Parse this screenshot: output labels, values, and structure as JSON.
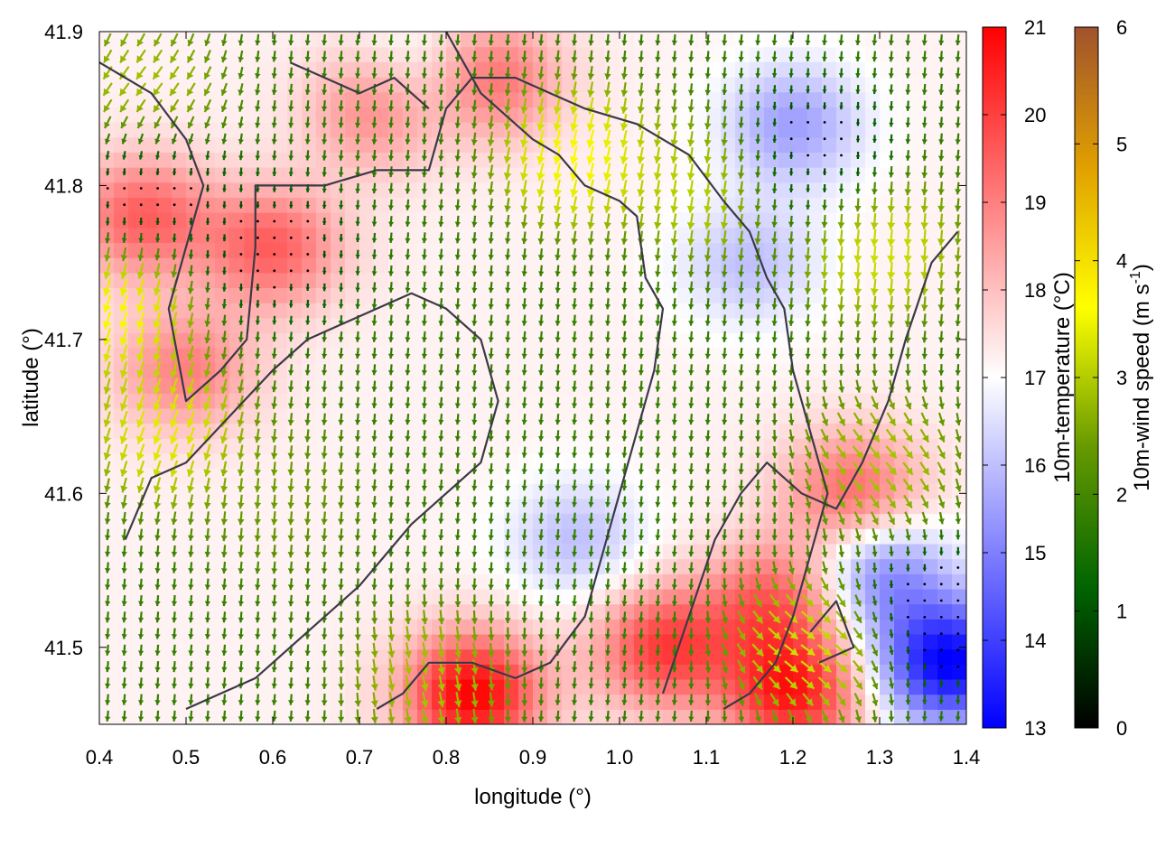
{
  "chart_data": {
    "type": "heatmap",
    "title": "",
    "xlabel": "longitude (°)",
    "ylabel": "latitude (°)",
    "xlim": [
      0.4,
      1.4
    ],
    "ylim": [
      41.45,
      41.9
    ],
    "xticks": [
      "0.4",
      "0.5",
      "0.6",
      "0.7",
      "0.8",
      "0.9",
      "1.0",
      "1.1",
      "1.2",
      "1.3",
      "1.4"
    ],
    "yticks": [
      "41.5",
      "41.6",
      "41.7",
      "41.8",
      "41.9"
    ],
    "xtick_values": [
      0.4,
      0.5,
      0.6,
      0.7,
      0.8,
      0.9,
      1.0,
      1.1,
      1.2,
      1.3,
      1.4
    ],
    "ytick_values": [
      41.5,
      41.6,
      41.7,
      41.8,
      41.9
    ],
    "layers": [
      {
        "name": "10m-temperature",
        "kind": "heatmap"
      },
      {
        "name": "10m-wind",
        "kind": "vector-field"
      },
      {
        "name": "coastline",
        "kind": "lines"
      }
    ],
    "temperature_hotspots": [
      {
        "lon": 0.45,
        "lat": 41.78,
        "value": 19.5
      },
      {
        "lon": 0.5,
        "lat": 41.68,
        "value": 19.0
      },
      {
        "lon": 0.6,
        "lat": 41.76,
        "value": 19.5
      },
      {
        "lon": 0.72,
        "lat": 41.85,
        "value": 19.0
      },
      {
        "lon": 0.83,
        "lat": 41.47,
        "value": 21.0
      },
      {
        "lon": 1.05,
        "lat": 41.5,
        "value": 20.0
      },
      {
        "lon": 1.2,
        "lat": 41.47,
        "value": 20.5
      },
      {
        "lon": 1.27,
        "lat": 41.6,
        "value": 19.5
      },
      {
        "lon": 0.85,
        "lat": 41.87,
        "value": 19.5
      },
      {
        "lon": 1.18,
        "lat": 41.53,
        "value": 19.5
      }
    ],
    "temperature_coldspots": [
      {
        "lon": 1.2,
        "lat": 41.84,
        "value": 15.5
      },
      {
        "lon": 1.38,
        "lat": 41.49,
        "value": 13.0
      },
      {
        "lon": 1.3,
        "lat": 41.55,
        "value": 15.0
      },
      {
        "lon": 0.95,
        "lat": 41.57,
        "value": 16.0
      },
      {
        "lon": 1.15,
        "lat": 41.75,
        "value": 16.0
      },
      {
        "lon": 0.78,
        "lat": 41.87,
        "value": 16.0
      }
    ],
    "temperature_default": 17.2,
    "wind_regions": [
      {
        "lon": 0.42,
        "lat": 41.72,
        "speed": 4.0,
        "dir_deg": 200
      },
      {
        "lon": 0.48,
        "lat": 41.64,
        "speed": 3.8,
        "dir_deg": 205
      },
      {
        "lon": 0.45,
        "lat": 41.86,
        "speed": 3.2,
        "dir_deg": 225
      },
      {
        "lon": 0.95,
        "lat": 41.82,
        "speed": 4.0,
        "dir_deg": 195
      },
      {
        "lon": 1.1,
        "lat": 41.8,
        "speed": 3.4,
        "dir_deg": 190
      },
      {
        "lon": 1.3,
        "lat": 41.76,
        "speed": 3.6,
        "dir_deg": 185
      },
      {
        "lon": 1.3,
        "lat": 41.62,
        "speed": 3.2,
        "dir_deg": 130
      },
      {
        "lon": 1.22,
        "lat": 41.5,
        "speed": 3.6,
        "dir_deg": 115
      },
      {
        "lon": 0.78,
        "lat": 41.48,
        "speed": 3.2,
        "dir_deg": 165
      },
      {
        "lon": 0.6,
        "lat": 41.6,
        "speed": 2.6,
        "dir_deg": 185
      },
      {
        "lon": 0.45,
        "lat": 41.8,
        "speed": 0.4,
        "dir_deg": 180
      },
      {
        "lon": 0.6,
        "lat": 41.76,
        "speed": 0.5,
        "dir_deg": 180
      },
      {
        "lon": 1.22,
        "lat": 41.82,
        "speed": 0.4,
        "dir_deg": 180
      },
      {
        "lon": 1.37,
        "lat": 41.52,
        "speed": 0.3,
        "dir_deg": 180
      }
    ],
    "wind_default": {
      "speed": 1.8,
      "dir_deg": 185
    },
    "coastlines": [
      [
        [
          0.4,
          41.88
        ],
        [
          0.46,
          41.86
        ],
        [
          0.5,
          41.83
        ],
        [
          0.52,
          41.8
        ],
        [
          0.5,
          41.76
        ],
        [
          0.48,
          41.72
        ],
        [
          0.5,
          41.66
        ],
        [
          0.54,
          41.68
        ],
        [
          0.57,
          41.7
        ],
        [
          0.58,
          41.76
        ],
        [
          0.58,
          41.8
        ],
        [
          0.62,
          41.8
        ],
        [
          0.66,
          41.8
        ],
        [
          0.72,
          41.81
        ],
        [
          0.78,
          41.81
        ],
        [
          0.8,
          41.85
        ],
        [
          0.83,
          41.87
        ],
        [
          0.88,
          41.87
        ],
        [
          0.92,
          41.86
        ],
        [
          0.96,
          41.85
        ],
        [
          1.02,
          41.84
        ],
        [
          1.08,
          41.82
        ],
        [
          1.12,
          41.79
        ],
        [
          1.15,
          41.77
        ],
        [
          1.17,
          41.74
        ],
        [
          1.19,
          41.72
        ],
        [
          1.2,
          41.68
        ],
        [
          1.22,
          41.64
        ],
        [
          1.24,
          41.6
        ],
        [
          1.22,
          41.56
        ],
        [
          1.2,
          41.52
        ],
        [
          1.18,
          41.49
        ],
        [
          1.15,
          41.47
        ],
        [
          1.12,
          41.46
        ]
      ],
      [
        [
          0.8,
          41.9
        ],
        [
          0.82,
          41.88
        ],
        [
          0.84,
          41.86
        ],
        [
          0.88,
          41.84
        ],
        [
          0.9,
          41.83
        ],
        [
          0.93,
          41.82
        ],
        [
          0.96,
          41.8
        ],
        [
          1.0,
          41.79
        ],
        [
          1.02,
          41.78
        ],
        [
          1.03,
          41.74
        ],
        [
          1.05,
          41.72
        ],
        [
          1.04,
          41.68
        ],
        [
          1.02,
          41.64
        ],
        [
          1.0,
          41.6
        ],
        [
          0.98,
          41.56
        ],
        [
          0.96,
          41.52
        ],
        [
          0.92,
          41.49
        ],
        [
          0.88,
          41.48
        ],
        [
          0.83,
          41.49
        ],
        [
          0.78,
          41.49
        ],
        [
          0.75,
          41.47
        ],
        [
          0.72,
          41.46
        ]
      ],
      [
        [
          0.43,
          41.57
        ],
        [
          0.46,
          41.61
        ],
        [
          0.5,
          41.62
        ],
        [
          0.55,
          41.65
        ],
        [
          0.6,
          41.68
        ],
        [
          0.64,
          41.7
        ],
        [
          0.68,
          41.71
        ],
        [
          0.72,
          41.72
        ],
        [
          0.76,
          41.73
        ],
        [
          0.8,
          41.72
        ],
        [
          0.84,
          41.7
        ],
        [
          0.86,
          41.66
        ],
        [
          0.84,
          41.62
        ],
        [
          0.8,
          41.6
        ],
        [
          0.76,
          41.58
        ],
        [
          0.73,
          41.56
        ],
        [
          0.7,
          41.54
        ],
        [
          0.66,
          41.52
        ],
        [
          0.62,
          41.5
        ],
        [
          0.58,
          41.48
        ],
        [
          0.54,
          41.47
        ],
        [
          0.5,
          41.46
        ]
      ],
      [
        [
          1.05,
          41.47
        ],
        [
          1.08,
          41.52
        ],
        [
          1.11,
          41.57
        ],
        [
          1.14,
          41.6
        ],
        [
          1.17,
          41.62
        ],
        [
          1.21,
          41.6
        ],
        [
          1.25,
          41.59
        ],
        [
          1.28,
          41.62
        ],
        [
          1.31,
          41.66
        ],
        [
          1.33,
          41.7
        ],
        [
          1.36,
          41.75
        ],
        [
          1.39,
          41.77
        ]
      ],
      [
        [
          0.62,
          41.88
        ],
        [
          0.66,
          41.87
        ],
        [
          0.7,
          41.86
        ],
        [
          0.74,
          41.87
        ],
        [
          0.78,
          41.85
        ]
      ],
      [
        [
          1.22,
          41.51
        ],
        [
          1.25,
          41.53
        ],
        [
          1.27,
          41.5
        ],
        [
          1.23,
          41.49
        ]
      ]
    ]
  },
  "colorbars": [
    {
      "label": "10m-temperature (°C)",
      "min": 13,
      "max": 21,
      "ticks": [
        "13",
        "14",
        "15",
        "16",
        "17",
        "18",
        "19",
        "20",
        "21"
      ],
      "colors": [
        "#0000ff",
        "#ffffff",
        "#ff0000"
      ]
    },
    {
      "label": "10m-wind speed (m s",
      "label_sup": "-1",
      "label_end": ")",
      "min": 0,
      "max": 6,
      "ticks": [
        "0",
        "1",
        "2",
        "3",
        "4",
        "5",
        "6"
      ],
      "colors": [
        "#000000",
        "#006400",
        "#669900",
        "#ffff00",
        "#e0a000",
        "#a0522d"
      ]
    }
  ]
}
